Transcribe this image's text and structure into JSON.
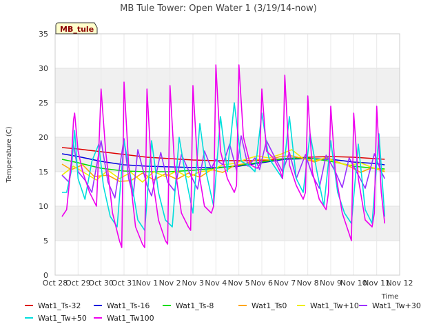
{
  "chart_data": {
    "type": "line",
    "title": "MB Tule Tower: Open Water 1 (3/19/14-now)",
    "xlabel": "Time",
    "ylabel": "Temperature (C)",
    "tag": "MB_tule",
    "ylim": [
      0,
      35
    ],
    "xlim": [
      0,
      15
    ],
    "y_ticks": [
      0,
      5,
      10,
      15,
      20,
      25,
      30,
      35
    ],
    "x_ticks": [
      {
        "x": 0,
        "label": "Oct 28"
      },
      {
        "x": 1,
        "label": "Oct 29"
      },
      {
        "x": 2,
        "label": "Oct 30"
      },
      {
        "x": 3,
        "label": "Oct 31"
      },
      {
        "x": 4,
        "label": "Nov 1"
      },
      {
        "x": 5,
        "label": "Nov 2"
      },
      {
        "x": 6,
        "label": "Nov 3"
      },
      {
        "x": 7,
        "label": "Nov 4"
      },
      {
        "x": 8,
        "label": "Nov 5"
      },
      {
        "x": 9,
        "label": "Nov 6"
      },
      {
        "x": 10,
        "label": "Nov 7"
      },
      {
        "x": 11,
        "label": "Nov 8"
      },
      {
        "x": 12,
        "label": "Nov 9"
      },
      {
        "x": 13,
        "label": "Nov 10"
      },
      {
        "x": 14,
        "label": "Nov 11"
      },
      {
        "x": 15,
        "label": "Nov 12"
      }
    ],
    "grid": true,
    "legend_position": "bottom",
    "series": [
      {
        "name": "Wat1_Ts-32",
        "color": "#dd0000",
        "x": [
          0.3,
          1,
          2,
          3,
          4,
          5,
          6,
          7,
          8,
          9,
          10,
          11,
          12,
          13,
          13.9,
          14.35
        ],
        "y": [
          18.5,
          18.3,
          17.9,
          17.5,
          17.1,
          16.9,
          16.7,
          16.6,
          16.6,
          16.6,
          16.9,
          17.1,
          17.2,
          17.1,
          16.9,
          16.8
        ]
      },
      {
        "name": "Wat1_Ts-16",
        "color": "#0000dd",
        "x": [
          0.3,
          1,
          2,
          3,
          4,
          5,
          6,
          7,
          8,
          9,
          10,
          11,
          12,
          13,
          13.9,
          14.35
        ],
        "y": [
          17.6,
          17.2,
          16.5,
          16.0,
          15.8,
          15.7,
          15.6,
          15.6,
          15.8,
          16.3,
          16.8,
          16.9,
          16.8,
          16.4,
          16.2,
          16.0
        ]
      },
      {
        "name": "Wat1_Ts-8",
        "color": "#00dd00",
        "x": [
          0.3,
          1,
          2,
          3,
          4,
          5,
          6,
          7,
          8,
          9,
          10,
          11,
          12,
          13,
          13.9,
          14.35
        ],
        "y": [
          16.8,
          16.3,
          15.5,
          15.1,
          15.0,
          15.0,
          15.2,
          15.5,
          15.9,
          16.4,
          16.9,
          17.0,
          16.5,
          15.8,
          15.5,
          15.4
        ]
      },
      {
        "name": "Wat1_Ts0",
        "color": "#ffa500",
        "x": [
          0.3,
          0.7,
          1.2,
          1.7,
          2.3,
          2.8,
          3.3,
          3.8,
          4.3,
          4.8,
          5.3,
          5.8,
          6.3,
          6.8,
          7.3,
          7.8,
          8.3,
          8.8,
          9.3,
          9.8,
          10.3,
          10.8,
          11.3,
          11.8,
          12.3,
          12.8,
          13.3,
          13.8,
          14.35
        ],
        "y": [
          16.1,
          15.3,
          16.0,
          14.3,
          14.5,
          13.6,
          13.7,
          14.8,
          13.8,
          14.7,
          13.9,
          14.8,
          14.2,
          15.3,
          14.9,
          15.9,
          16.2,
          16.8,
          16.7,
          17.2,
          17.3,
          16.9,
          16.4,
          17.1,
          16.4,
          15.8,
          14.9,
          15.6,
          15.0
        ]
      },
      {
        "name": "Wat1_Tw+10",
        "color": "#eeee00",
        "x": [
          0.3,
          0.8,
          1.3,
          1.8,
          2.3,
          2.8,
          3.3,
          3.8,
          4.3,
          4.8,
          5.3,
          5.8,
          6.3,
          6.8,
          7.3,
          7.8,
          8.3,
          8.8,
          9.3,
          9.8,
          10.3,
          10.8,
          11.3,
          11.8,
          12.3,
          12.8,
          13.3,
          13.8,
          14.35
        ],
        "y": [
          14.5,
          15.8,
          14.8,
          13.8,
          15.2,
          14.0,
          14.9,
          13.5,
          15.0,
          14.3,
          15.1,
          14.2,
          15.0,
          15.2,
          16.0,
          16.2,
          16.8,
          17.3,
          17.0,
          17.5,
          18.2,
          16.9,
          16.6,
          17.0,
          16.3,
          15.9,
          16.3,
          15.6,
          15.2
        ]
      },
      {
        "name": "Wat1_Tw+30",
        "color": "#9b30ff",
        "x": [
          0.3,
          0.6,
          0.8,
          1.0,
          1.3,
          1.6,
          2.0,
          2.3,
          2.6,
          3.0,
          3.2,
          3.4,
          3.6,
          4.0,
          4.2,
          4.6,
          4.9,
          5.2,
          5.5,
          5.9,
          6.2,
          6.5,
          6.8,
          7.0,
          7.3,
          7.6,
          7.9,
          8.1,
          8.4,
          8.7,
          8.9,
          9.2,
          9.5,
          9.9,
          10.2,
          10.5,
          10.9,
          11.2,
          11.5,
          11.8,
          12.2,
          12.5,
          12.8,
          13.2,
          13.5,
          13.9,
          14.2,
          14.35
        ],
        "y": [
          14.5,
          13.5,
          19.0,
          15.0,
          13.8,
          12.0,
          19.5,
          13.5,
          11.2,
          19.8,
          14.0,
          11.5,
          18.2,
          13.0,
          11.5,
          17.8,
          13.5,
          12.2,
          17.5,
          14.5,
          12.5,
          18.0,
          15.5,
          16.8,
          16.0,
          19.0,
          15.2,
          20.2,
          15.8,
          17.0,
          15.3,
          19.5,
          17.5,
          15.0,
          17.8,
          14.0,
          17.5,
          14.5,
          12.6,
          17.4,
          15.0,
          12.7,
          17.0,
          14.5,
          12.6,
          17.6,
          15.0,
          14.0
        ]
      },
      {
        "name": "Wat1_Tw+50",
        "color": "#00dddd",
        "x": [
          0.3,
          0.5,
          0.7,
          0.85,
          1.0,
          1.3,
          1.6,
          1.9,
          2.1,
          2.4,
          2.7,
          3.0,
          3.3,
          3.6,
          3.9,
          4.2,
          4.5,
          4.8,
          5.1,
          5.4,
          5.7,
          6.0,
          6.3,
          6.6,
          6.9,
          7.2,
          7.5,
          7.8,
          8.1,
          8.4,
          8.7,
          9.0,
          9.3,
          9.6,
          9.9,
          10.2,
          10.5,
          10.8,
          11.1,
          11.4,
          11.7,
          12.0,
          12.3,
          12.6,
          12.9,
          13.2,
          13.5,
          13.8,
          14.1,
          14.35
        ],
        "y": [
          12.0,
          12.0,
          15.0,
          21.0,
          14.0,
          11.0,
          16.5,
          19.0,
          13.0,
          8.5,
          7.0,
          19.5,
          14.0,
          8.0,
          6.5,
          19.5,
          12.0,
          8.0,
          7.0,
          20.0,
          14.0,
          9.0,
          22.0,
          14.5,
          10.0,
          23.0,
          15.0,
          25.0,
          16.5,
          16.0,
          15.0,
          23.5,
          17.0,
          15.5,
          14.0,
          23.0,
          14.0,
          12.0,
          20.5,
          15.0,
          10.0,
          19.5,
          12.0,
          9.0,
          7.5,
          19.0,
          9.5,
          7.5,
          20.5,
          8.5
        ]
      },
      {
        "name": "Wat1_Tw100",
        "color": "#ee00ee",
        "x": [
          0.3,
          0.5,
          0.7,
          0.8,
          0.85,
          1.0,
          1.2,
          1.5,
          1.8,
          1.9,
          2.0,
          2.2,
          2.5,
          2.8,
          2.9,
          3.0,
          3.2,
          3.5,
          3.8,
          3.9,
          4.0,
          4.2,
          4.5,
          4.8,
          4.9,
          5.0,
          5.2,
          5.5,
          5.8,
          5.9,
          6.0,
          6.2,
          6.5,
          6.8,
          6.9,
          7.0,
          7.2,
          7.5,
          7.8,
          7.9,
          8.0,
          8.2,
          8.5,
          8.8,
          8.9,
          9.0,
          9.2,
          9.5,
          9.8,
          9.9,
          10.0,
          10.2,
          10.5,
          10.8,
          10.9,
          11.0,
          11.2,
          11.5,
          11.8,
          11.9,
          12.0,
          12.2,
          12.5,
          12.8,
          12.9,
          13.0,
          13.2,
          13.5,
          13.8,
          13.9,
          14.0,
          14.2,
          14.35
        ],
        "y": [
          8.5,
          9.5,
          16.0,
          22.5,
          23.5,
          18.0,
          15.0,
          12.0,
          10.0,
          18.0,
          27.0,
          18.0,
          9.0,
          5.0,
          4.0,
          28.0,
          16.0,
          7.0,
          4.5,
          4.0,
          27.0,
          15.0,
          8.0,
          5.0,
          4.5,
          27.5,
          16.0,
          9.0,
          7.0,
          6.5,
          27.5,
          16.0,
          10.0,
          9.0,
          10.0,
          30.5,
          18.0,
          14.0,
          12.0,
          13.0,
          30.5,
          20.0,
          16.0,
          15.5,
          16.0,
          27.0,
          18.0,
          17.0,
          15.0,
          14.0,
          29.0,
          16.0,
          13.0,
          11.0,
          12.0,
          26.0,
          15.0,
          11.0,
          9.5,
          12.0,
          24.5,
          15.0,
          9.0,
          6.0,
          5.0,
          23.5,
          14.0,
          8.0,
          7.0,
          9.0,
          24.5,
          12.0,
          7.5
        ]
      }
    ]
  }
}
